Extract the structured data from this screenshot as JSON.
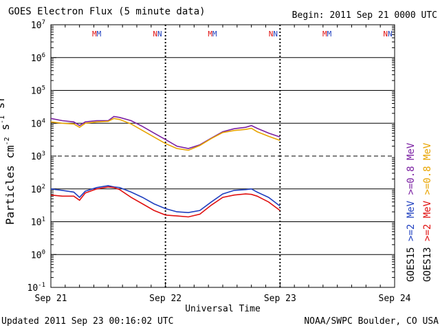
{
  "header": {
    "title": "GOES Electron Flux (5 minute data)",
    "begin": "Begin: 2011 Sep 21 0000 UTC"
  },
  "footer": {
    "updated": "Updated 2011 Sep 23 00:16:02 UTC",
    "credit": "NOAA/SWPC Boulder, CO USA"
  },
  "colors": {
    "goes15_08": "#7a1fa2",
    "goes13_08": "#e8a400",
    "goes15_2": "#1f3fbf",
    "goes13_2": "#e01010",
    "axis": "#000000"
  },
  "chart_data": {
    "type": "line",
    "title": "GOES Electron Flux (5 minute data)",
    "xlabel": "Universal Time",
    "ylabel": "Particles cm^-2 s^-1 sr^-1",
    "yscale": "log",
    "ylim": [
      0.1,
      10000000
    ],
    "xlim": [
      0,
      3
    ],
    "x_ticks": [
      {
        "value": 0,
        "label": "Sep 21"
      },
      {
        "value": 1,
        "label": "Sep 22"
      },
      {
        "value": 2,
        "label": "Sep 23"
      },
      {
        "value": 3,
        "label": "Sep 24"
      }
    ],
    "y_ticks": [
      {
        "exp": 7,
        "base": "10",
        "sup": "7"
      },
      {
        "exp": 6,
        "base": "10",
        "sup": "6"
      },
      {
        "exp": 5,
        "base": "10",
        "sup": "5"
      },
      {
        "exp": 4,
        "base": "10",
        "sup": "4"
      },
      {
        "exp": 3,
        "base": "10",
        "sup": "3"
      },
      {
        "exp": 2,
        "base": "10",
        "sup": "2"
      },
      {
        "exp": 1,
        "base": "10",
        "sup": "1"
      },
      {
        "exp": 0,
        "base": "10",
        "sup": "0"
      },
      {
        "exp": -1,
        "base": "10",
        "sup": "-1"
      }
    ],
    "threshold_dashed": 1000,
    "annotations": [
      {
        "x": 0.4,
        "label": "MM"
      },
      {
        "x": 0.93,
        "label": "NN"
      },
      {
        "x": 1.41,
        "label": "MM"
      },
      {
        "x": 1.94,
        "label": "NN"
      },
      {
        "x": 2.41,
        "label": "MM"
      },
      {
        "x": 2.94,
        "label": "NN"
      }
    ],
    "legend": [
      {
        "text": "GOES15 >=0.8 MeV",
        "prefix": "GOES15",
        "energy": ">=0.8",
        "unit": "MeV",
        "color": "#7a1fa2"
      },
      {
        "text": "GOES13 >=0.8 MeV",
        "prefix": "GOES13",
        "energy": ">=0.8",
        "unit": "MeV",
        "color": "#e8a400"
      },
      {
        "text": "GOES15 >=2 MeV",
        "prefix": "GOES15",
        "energy": ">=2",
        "unit": "MeV",
        "color": "#1f3fbf"
      },
      {
        "text": "GOES13 >=2 MeV",
        "prefix": "GOES13",
        "energy": ">=2",
        "unit": "MeV",
        "color": "#e01010"
      }
    ],
    "series": [
      {
        "name": "GOES15 >=0.8 MeV",
        "color": "#7a1fa2",
        "x": [
          0,
          0.1,
          0.2,
          0.25,
          0.3,
          0.4,
          0.5,
          0.55,
          0.6,
          0.7,
          0.8,
          0.9,
          1.0,
          1.1,
          1.2,
          1.3,
          1.4,
          1.5,
          1.6,
          1.7,
          1.75,
          1.8,
          1.9,
          2.0
        ],
        "y": [
          14000,
          12000,
          11000,
          8500,
          11000,
          12000,
          12000,
          16000,
          15000,
          12000,
          8000,
          5000,
          3200,
          2000,
          1700,
          2200,
          3500,
          5500,
          6800,
          7500,
          8500,
          7000,
          5000,
          3800
        ]
      },
      {
        "name": "GOES13 >=0.8 MeV",
        "color": "#e8a400",
        "x": [
          0,
          0.1,
          0.2,
          0.25,
          0.3,
          0.4,
          0.5,
          0.55,
          0.6,
          0.7,
          0.8,
          0.9,
          1.0,
          1.1,
          1.2,
          1.3,
          1.4,
          1.5,
          1.6,
          1.7,
          1.75,
          1.8,
          1.9,
          2.0
        ],
        "y": [
          11000,
          10000,
          9500,
          7500,
          10000,
          11000,
          11500,
          14000,
          13000,
          9500,
          6000,
          3800,
          2400,
          1700,
          1500,
          2100,
          3400,
          5200,
          6000,
          6500,
          7000,
          5500,
          4000,
          3000
        ]
      },
      {
        "name": "GOES15 >=2 MeV",
        "color": "#1f3fbf",
        "x": [
          0,
          0.1,
          0.2,
          0.25,
          0.3,
          0.4,
          0.5,
          0.55,
          0.6,
          0.7,
          0.8,
          0.9,
          1.0,
          1.1,
          1.2,
          1.3,
          1.4,
          1.5,
          1.6,
          1.7,
          1.75,
          1.8,
          1.9,
          2.0
        ],
        "y": [
          100,
          90,
          80,
          55,
          85,
          110,
          125,
          115,
          110,
          80,
          55,
          35,
          25,
          20,
          19,
          22,
          40,
          70,
          90,
          95,
          100,
          80,
          55,
          30
        ]
      },
      {
        "name": "GOES13 >=2 MeV",
        "color": "#e01010",
        "x": [
          0,
          0.1,
          0.2,
          0.25,
          0.3,
          0.4,
          0.5,
          0.55,
          0.6,
          0.7,
          0.8,
          0.9,
          1.0,
          1.1,
          1.2,
          1.3,
          1.4,
          1.5,
          1.6,
          1.7,
          1.75,
          1.8,
          1.9,
          2.0
        ],
        "y": [
          65,
          60,
          60,
          45,
          75,
          100,
          115,
          110,
          95,
          55,
          35,
          22,
          16,
          15,
          14,
          17,
          32,
          55,
          65,
          70,
          68,
          60,
          40,
          22
        ]
      }
    ]
  }
}
